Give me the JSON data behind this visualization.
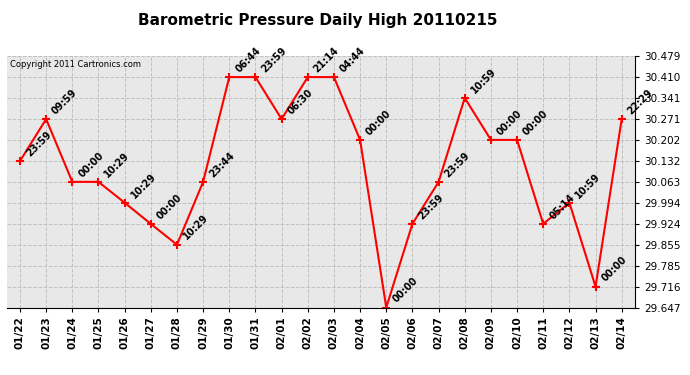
{
  "title": "Barometric Pressure Daily High 20110215",
  "copyright": "Copyright 2011 Cartronics.com",
  "x_labels": [
    "01/22",
    "01/23",
    "01/24",
    "01/25",
    "01/26",
    "01/27",
    "01/28",
    "01/29",
    "01/30",
    "01/31",
    "02/01",
    "02/02",
    "02/03",
    "02/04",
    "02/05",
    "02/06",
    "02/07",
    "02/08",
    "02/09",
    "02/10",
    "02/11",
    "02/12",
    "02/13",
    "02/14"
  ],
  "y_values": [
    30.132,
    30.271,
    30.063,
    30.063,
    29.994,
    29.924,
    29.855,
    30.063,
    30.41,
    30.41,
    30.271,
    30.41,
    30.41,
    30.202,
    29.647,
    29.924,
    30.063,
    30.341,
    30.202,
    30.202,
    29.924,
    29.994,
    29.716,
    30.271
  ],
  "annotations": [
    "23:59",
    "09:59",
    "00:00",
    "10:29",
    "10:29",
    "00:00",
    "10:29",
    "23:44",
    "06:44",
    "23:59",
    "06:30",
    "21:14",
    "04:44",
    "00:00",
    "00:00",
    "23:59",
    "23:59",
    "10:59",
    "00:00",
    "00:00",
    "05:14",
    "10:59",
    "00:00",
    "22:29"
  ],
  "y_ticks": [
    29.647,
    29.716,
    29.785,
    29.855,
    29.924,
    29.994,
    30.063,
    30.132,
    30.202,
    30.271,
    30.341,
    30.41,
    30.479
  ],
  "y_min": 29.647,
  "y_max": 30.479,
  "line_color": "red",
  "background_color": "#e8e8e8",
  "grid_color": "#c0c0c0",
  "title_fontsize": 11,
  "annotation_fontsize": 7.0,
  "tick_fontsize": 7.5
}
